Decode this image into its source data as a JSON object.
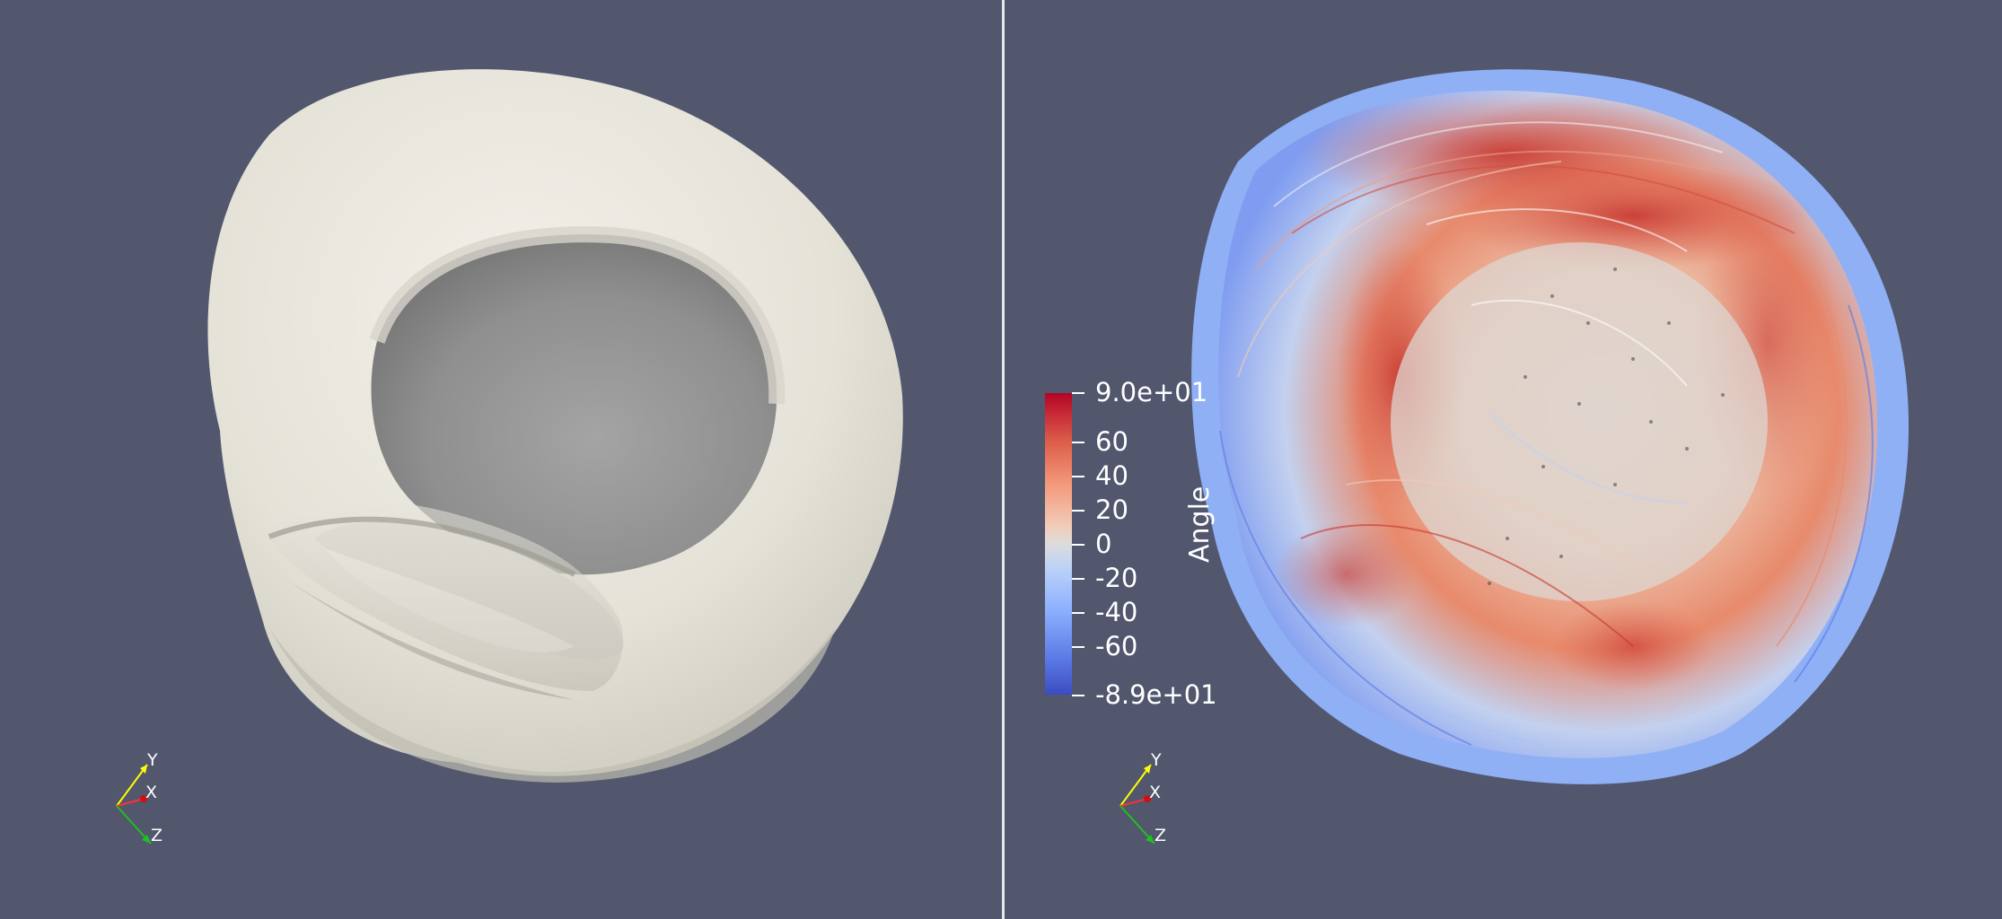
{
  "left_view": {
    "model": "heart-surface-mesh",
    "surface_color": "#e6e3da",
    "background_color": "#52576e",
    "axes": {
      "y_label": "Y",
      "x_label": "X",
      "z_label": "Z"
    }
  },
  "right_view": {
    "model": "fiber-streamlines",
    "background_color": "#52576e",
    "axes": {
      "y_label": "Y",
      "x_label": "X",
      "z_label": "Z"
    },
    "legend": {
      "title": "Angle",
      "ticks": [
        "9.0e+01",
        "60",
        "40",
        "20",
        "0",
        "-20",
        "-40",
        "-60",
        "-8.9e+01"
      ],
      "colormap_top": "#b40426",
      "colormap_mid": "#dddcdc",
      "colormap_bottom": "#3b4cc0"
    }
  }
}
